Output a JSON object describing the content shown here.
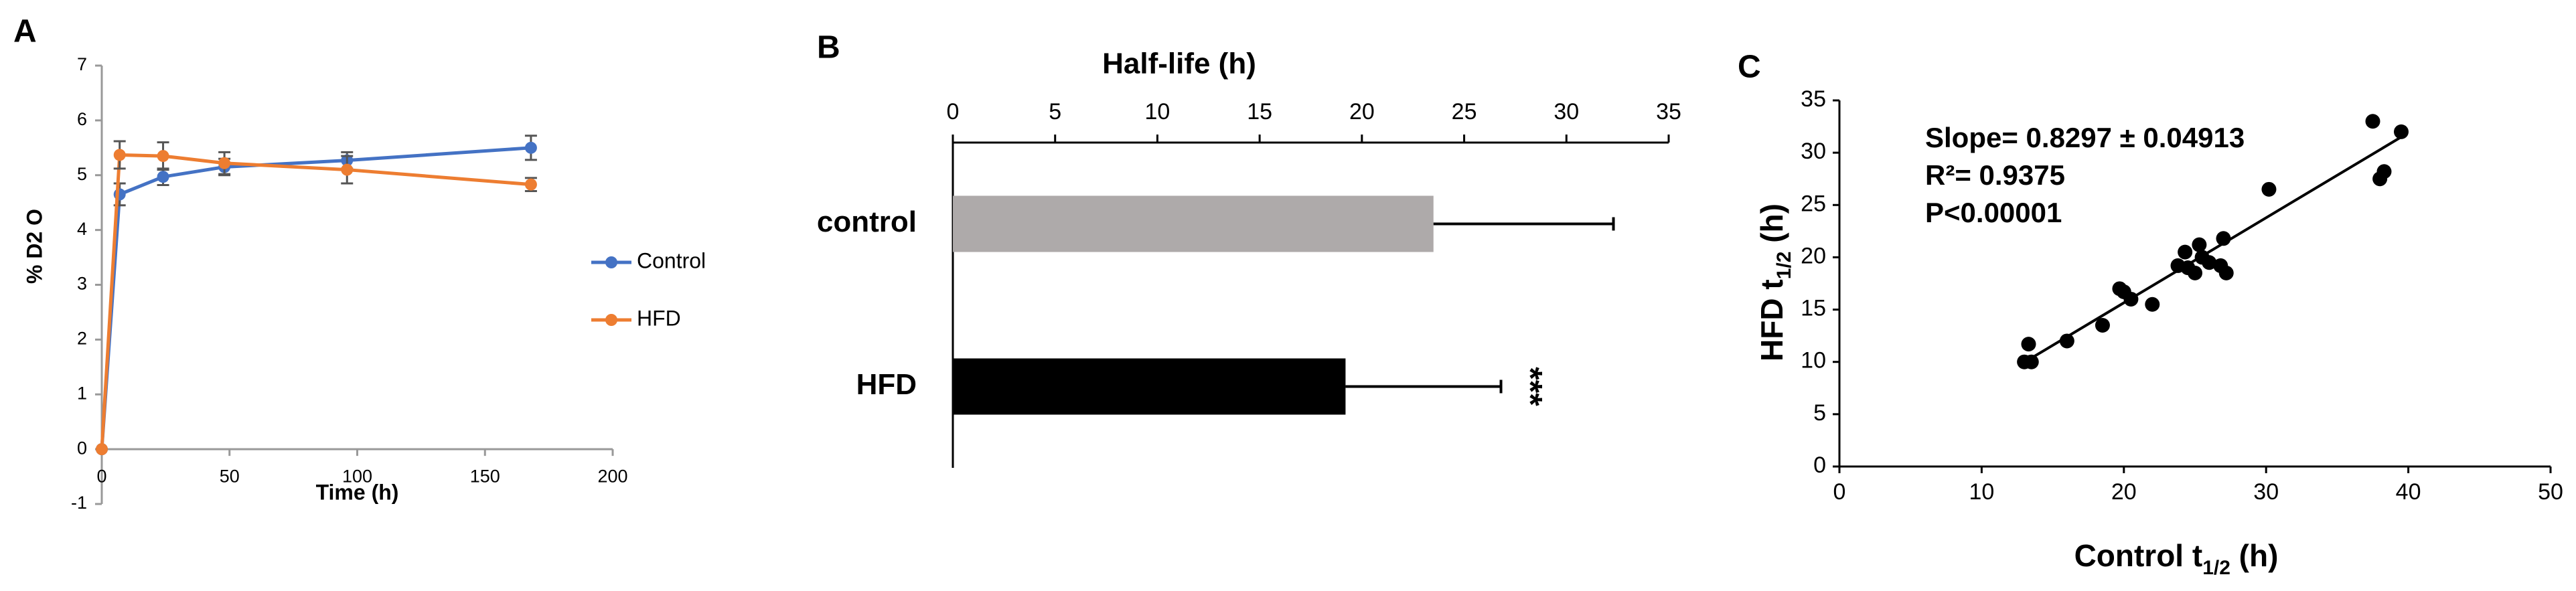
{
  "chart_data": [
    {
      "type": "line",
      "panel": "A",
      "x_label": "Time (h)",
      "y_label": "% D2 O",
      "x": [
        0,
        7,
        24,
        48,
        96,
        168
      ],
      "series": [
        {
          "name": "Control",
          "color": "#4472c4",
          "values": [
            0,
            4.65,
            4.97,
            5.15,
            5.27,
            5.5
          ],
          "errors": [
            0,
            0.2,
            0.15,
            0.15,
            0.15,
            0.22
          ]
        },
        {
          "name": "HFD",
          "color": "#ed7d31",
          "values": [
            0,
            5.37,
            5.35,
            5.22,
            5.1,
            4.83
          ],
          "errors": [
            0,
            0.25,
            0.25,
            0.2,
            0.25,
            0.12
          ]
        }
      ],
      "xlim": [
        0,
        200
      ],
      "xticks": [
        0,
        50,
        100,
        150,
        200
      ],
      "ylim": [
        -1,
        7
      ],
      "yticks": [
        -1,
        0,
        1,
        2,
        3,
        4,
        5,
        6,
        7
      ],
      "legend": "right"
    },
    {
      "type": "bar",
      "orientation": "horizontal",
      "x_axis_position": "top",
      "panel": "B",
      "x_label": "Half-life (h)",
      "categories": [
        "control",
        "HFD"
      ],
      "values": [
        23.5,
        19.2
      ],
      "errors": [
        8.8,
        7.6
      ],
      "colors": [
        "#aeaaaa",
        "#000000"
      ],
      "xlim": [
        0,
        35
      ],
      "xticks": [
        0,
        5,
        10,
        15,
        20,
        25,
        30,
        35
      ],
      "annotations": [
        {
          "text": "***",
          "category": 1
        }
      ]
    },
    {
      "type": "scatter",
      "panel": "C",
      "x_label": [
        "Control t",
        "1/2",
        " (h)"
      ],
      "y_label": [
        "HFD t",
        "1/2",
        " (h)"
      ],
      "series": [
        {
          "color": "#000000",
          "x": [
            13,
            13.3,
            13.5,
            16,
            18.5,
            19.7,
            20,
            20.5,
            22,
            23.8,
            24.3,
            24.5,
            25,
            25.3,
            25.5,
            26,
            26.8,
            27,
            27.2,
            30.2,
            37.5,
            38,
            38.3,
            39.5
          ],
          "y": [
            10,
            11.7,
            10,
            12,
            13.5,
            17,
            16.7,
            16,
            15.5,
            19.2,
            20.5,
            19,
            18.5,
            21.2,
            20,
            19.5,
            19.2,
            21.8,
            18.5,
            26.5,
            33,
            27.5,
            28.2,
            32
          ]
        }
      ],
      "fit_line": {
        "x": [
          12.8,
          39.5
        ],
        "y": [
          9.8,
          31.5
        ]
      },
      "stats": [
        "Slope= 0.8297 ± 0.04913",
        "R²= 0.9375",
        "P<0.00001"
      ],
      "xlim": [
        0,
        50
      ],
      "xticks": [
        0,
        10,
        20,
        30,
        40,
        50
      ],
      "ylim": [
        0,
        35
      ],
      "yticks": [
        0,
        5,
        10,
        15,
        20,
        25,
        30,
        35
      ]
    }
  ]
}
